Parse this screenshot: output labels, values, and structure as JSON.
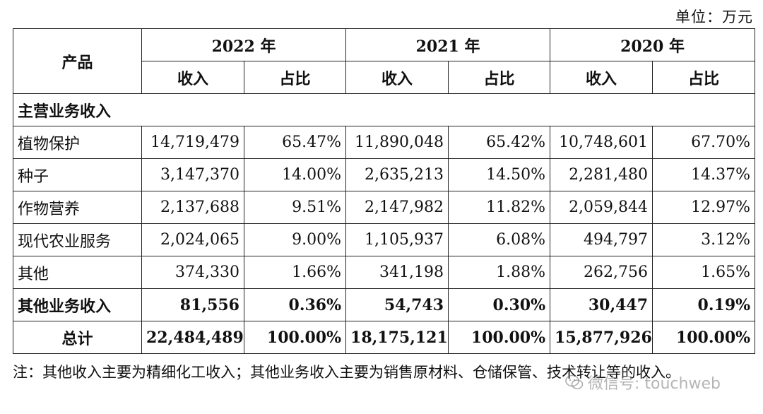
{
  "unit_label": "单位：万元",
  "headers": {
    "product": "产品",
    "years": [
      "2022 年",
      "2021 年",
      "2020 年"
    ],
    "income": "收入",
    "share": "占比"
  },
  "section_main": "主营业务收入",
  "rows": [
    {
      "label": "植物保护",
      "values": [
        "14,719,479",
        "65.47%",
        "11,890,048",
        "65.42%",
        "10,748,601",
        "67.70%"
      ]
    },
    {
      "label": "种子",
      "values": [
        "3,147,370",
        "14.00%",
        "2,635,213",
        "14.50%",
        "2,281,480",
        "14.37%"
      ]
    },
    {
      "label": "作物营养",
      "values": [
        "2,137,688",
        "9.51%",
        "2,147,982",
        "11.82%",
        "2,059,844",
        "12.97%"
      ]
    },
    {
      "label": "现代农业服务",
      "values": [
        "2,024,065",
        "9.00%",
        "1,105,937",
        "6.08%",
        "494,797",
        "3.12%"
      ]
    },
    {
      "label": "其他",
      "values": [
        "374,330",
        "1.66%",
        "341,198",
        "1.88%",
        "262,756",
        "1.65%"
      ]
    }
  ],
  "other_business": {
    "label": "其他业务收入",
    "values": [
      "81,556",
      "0.36%",
      "54,743",
      "0.30%",
      "30,447",
      "0.19%"
    ]
  },
  "total": {
    "label": "总计",
    "values": [
      "22,484,489",
      "100.00%",
      "18,175,121",
      "100.00%",
      "15,877,926",
      "100.00%"
    ]
  },
  "note": "注：其他收入主要为精细化工收入；其他业务收入主要为销售原材料、仓储保管、技术转让等的收入。",
  "watermark": "微信号: touchweb"
}
